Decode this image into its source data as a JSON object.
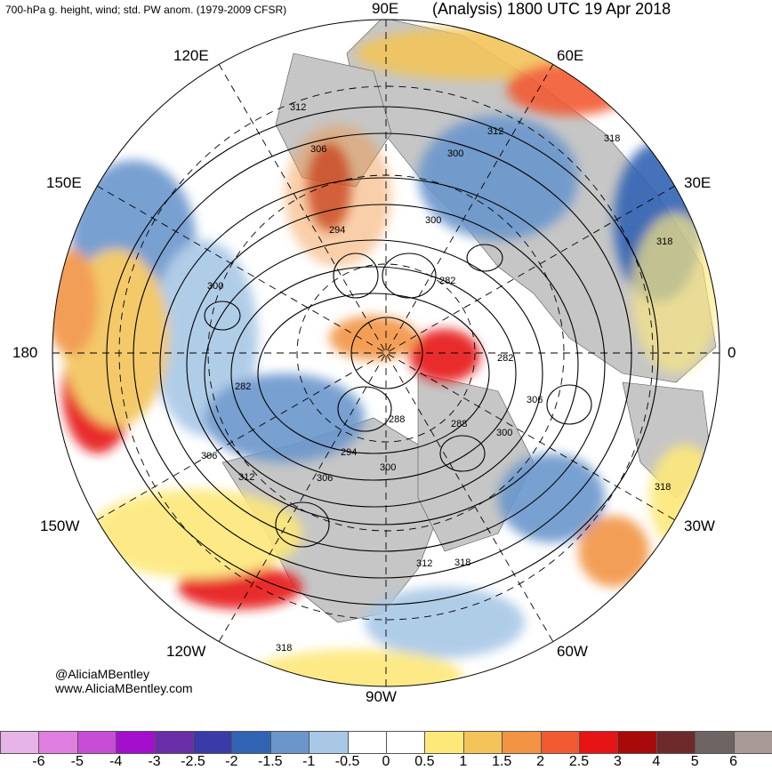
{
  "header": {
    "left_title": "700-hPa g. height, wind; std. PW anom. (1979-2009 CFSR)",
    "right_title": "(Analysis) 1800 UTC 19 Apr 2018"
  },
  "longitude_labels": {
    "lon_90e": "90E",
    "lon_120e": "120E",
    "lon_60e": "60E",
    "lon_150e": "150E",
    "lon_30e": "30E",
    "lon_180": "180",
    "lon_0": "0",
    "lon_150w": "150W",
    "lon_30w": "30W",
    "lon_120w": "120W",
    "lon_60w": "60W",
    "lon_90w": "90W"
  },
  "contour_labels": [
    "312",
    "306",
    "300",
    "294",
    "282",
    "300",
    "282",
    "288",
    "294",
    "300",
    "306",
    "312",
    "318",
    "306",
    "300",
    "312",
    "318",
    "312",
    "318",
    "318",
    "306",
    "288",
    "282",
    "300",
    "318"
  ],
  "credits": {
    "handle": "@AliciaMBentley",
    "website": "www.AliciaMBentley.com"
  },
  "colorbar": {
    "ticks": [
      "-6",
      "-5",
      "-4",
      "-3",
      "-2.5",
      "-2",
      "-1.5",
      "-1",
      "-0.5",
      "0",
      "0.5",
      "1",
      "1.5",
      "2",
      "2.5",
      "3",
      "4",
      "5",
      "6"
    ],
    "colors": [
      "#e6b4e6",
      "#e07fe0",
      "#c84dd6",
      "#a30fcc",
      "#6a2ea8",
      "#3a3aa8",
      "#3264b4",
      "#6b96cc",
      "#a8c8e6",
      "#ffffff",
      "#ffffff",
      "#fde87a",
      "#f2c45a",
      "#f29444",
      "#f25a32",
      "#e61414",
      "#a80a0a",
      "#6e2a2a",
      "#6e6464",
      "#a89a96"
    ]
  },
  "colors": {
    "land": "#c6c6c6",
    "ocean": "#ffffff",
    "contour": "#000000"
  }
}
